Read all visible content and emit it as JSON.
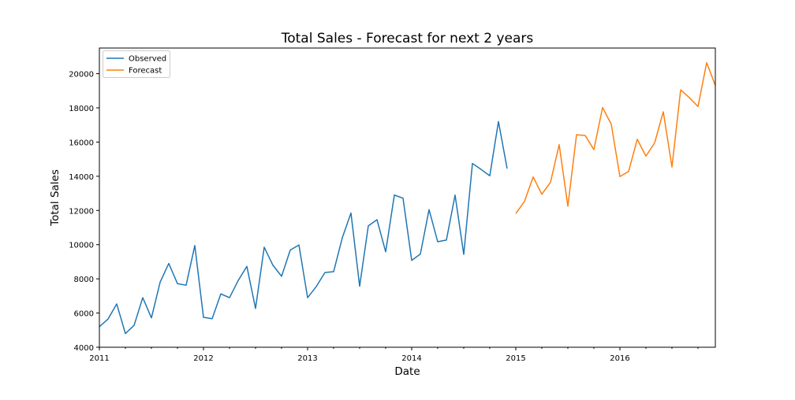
{
  "chart_data": {
    "type": "line",
    "title": "Total Sales - Forecast for next 2 years",
    "xlabel": "Date",
    "ylabel": "Total Sales",
    "xlim": [
      "2011-01",
      "2016-12"
    ],
    "ylim": [
      4000,
      21500
    ],
    "x_ticks": [
      "2011",
      "2012",
      "2013",
      "2014",
      "2015",
      "2016"
    ],
    "y_ticks": [
      4000,
      6000,
      8000,
      10000,
      12000,
      14000,
      16000,
      18000,
      20000
    ],
    "grid": false,
    "legend_position": "top-left",
    "colors": {
      "Observed": "#1f77b4",
      "Forecast": "#ff7f0e"
    },
    "series": [
      {
        "name": "Observed",
        "x": [
          "2011-01",
          "2011-02",
          "2011-03",
          "2011-04",
          "2011-05",
          "2011-06",
          "2011-07",
          "2011-08",
          "2011-09",
          "2011-10",
          "2011-11",
          "2011-12",
          "2012-01",
          "2012-02",
          "2012-03",
          "2012-04",
          "2012-05",
          "2012-06",
          "2012-07",
          "2012-08",
          "2012-09",
          "2012-10",
          "2012-11",
          "2012-12",
          "2013-01",
          "2013-02",
          "2013-03",
          "2013-04",
          "2013-05",
          "2013-06",
          "2013-07",
          "2013-08",
          "2013-09",
          "2013-10",
          "2013-11",
          "2013-12",
          "2014-01",
          "2014-02",
          "2014-03",
          "2014-04",
          "2014-05",
          "2014-06",
          "2014-07",
          "2014-08",
          "2014-09",
          "2014-10",
          "2014-11",
          "2014-12"
        ],
        "values": [
          5200,
          5650,
          6530,
          4800,
          5280,
          6900,
          5720,
          7800,
          8900,
          7720,
          7630,
          9950,
          5750,
          5670,
          7120,
          6900,
          7900,
          8730,
          6270,
          9850,
          8800,
          8150,
          9680,
          9980,
          6900,
          7550,
          8370,
          8420,
          10400,
          11850,
          7570,
          11100,
          11460,
          9580,
          12900,
          12720,
          9080,
          9450,
          12050,
          10170,
          10270,
          12900,
          9430,
          14750,
          14400,
          14030,
          17200,
          14450
        ]
      },
      {
        "name": "Forecast",
        "x": [
          "2015-01",
          "2015-02",
          "2015-03",
          "2015-04",
          "2015-05",
          "2015-06",
          "2015-07",
          "2015-08",
          "2015-09",
          "2015-10",
          "2015-11",
          "2015-12",
          "2016-01",
          "2016-02",
          "2016-03",
          "2016-04",
          "2016-05",
          "2016-06",
          "2016-07",
          "2016-08",
          "2016-09",
          "2016-10",
          "2016-11",
          "2016-12"
        ],
        "values": [
          11820,
          12530,
          13960,
          12950,
          13650,
          15850,
          12250,
          16430,
          16380,
          15560,
          18020,
          17050,
          13980,
          14280,
          16160,
          15180,
          15950,
          17770,
          14540,
          19050,
          18600,
          18080,
          20640,
          19310
        ]
      }
    ]
  }
}
